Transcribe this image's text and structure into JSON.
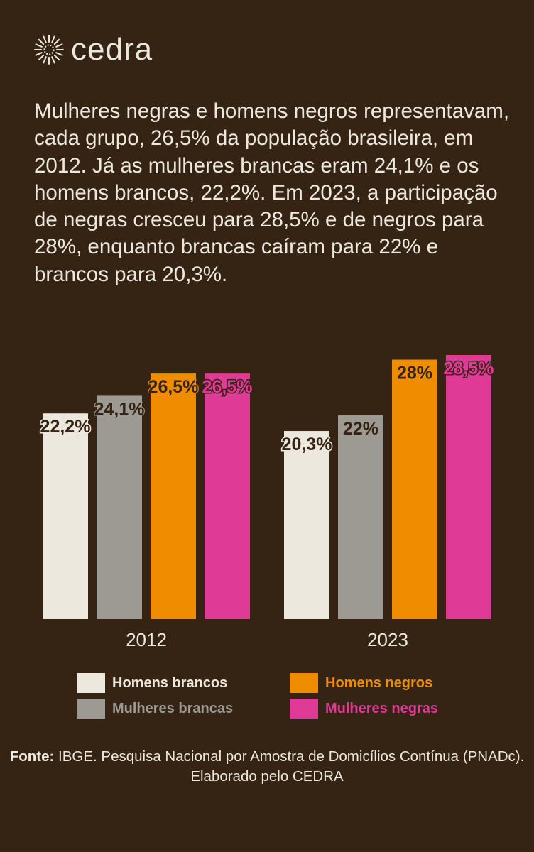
{
  "brand": {
    "name": "cedra"
  },
  "intro_text": "Mulheres negras e homens negros representavam, cada grupo, 26,5% da população brasileira, em 2012. Já as mulheres brancas eram 24,1% e os homens brancos, 22,2%. Em 2023, a participação de negras cresceu para 28,5% e de negros para 28%, enquanto brancas caíram para 22% e brancos para 20,3%.",
  "chart_data": {
    "type": "bar",
    "categories": [
      "2012",
      "2023"
    ],
    "series": [
      {
        "name": "Homens brancos",
        "color": "#ece8de",
        "values": [
          22.2,
          20.3
        ],
        "labels": [
          "22,2%",
          "20,3%"
        ]
      },
      {
        "name": "Mulheres brancas",
        "color": "#9c9a92",
        "values": [
          24.1,
          22.0
        ],
        "labels": [
          "24,1%",
          "22%"
        ]
      },
      {
        "name": "Homens negros",
        "color": "#f08c00",
        "values": [
          26.5,
          28.0
        ],
        "labels": [
          "26,5%",
          "28%"
        ]
      },
      {
        "name": "Mulheres negras",
        "color": "#de3a96",
        "values": [
          26.5,
          28.5
        ],
        "labels": [
          "26,5%",
          "28,5%"
        ]
      }
    ],
    "ylim": [
      0,
      28.5
    ],
    "grid": false,
    "legend_position": "bottom"
  },
  "source": {
    "label": "Fonte:",
    "text": " IBGE. Pesquisa Nacional por Amostra de Domicílios Contínua (PNADc). Elaborado pelo CEDRA"
  }
}
